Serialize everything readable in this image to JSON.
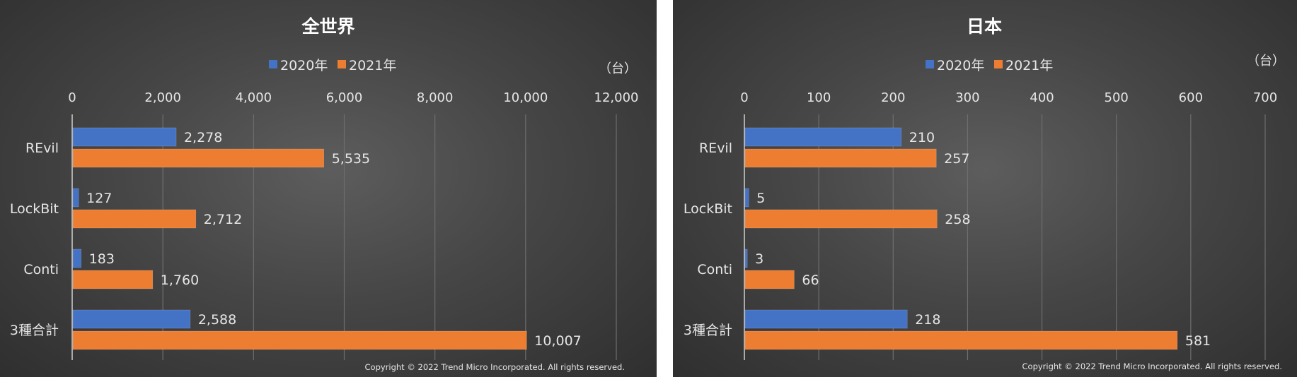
{
  "colors": {
    "series_2020": "#4472c4",
    "series_2021": "#ed7d31",
    "grid": "#6e6e6e",
    "text": "#e6e6e6"
  },
  "chart_data": [
    {
      "type": "bar",
      "orientation": "horizontal",
      "title": "全世界",
      "unit": "（台）",
      "categories": [
        "REvil",
        "LockBit",
        "Conti",
        "3種合計"
      ],
      "series": [
        {
          "name": "2020年",
          "values": [
            2278,
            127,
            183,
            2588
          ]
        },
        {
          "name": "2021年",
          "values": [
            5535,
            2712,
            1760,
            10007
          ]
        }
      ],
      "value_labels": [
        [
          "2,278",
          "127",
          "183",
          "2,588"
        ],
        [
          "5,535",
          "2,712",
          "1,760",
          "10,007"
        ]
      ],
      "xlim": [
        0,
        12000
      ],
      "ticks": [
        0,
        2000,
        4000,
        6000,
        8000,
        10000,
        12000
      ],
      "tick_labels": [
        "0",
        "2,000",
        "4,000",
        "6,000",
        "8,000",
        "10,000",
        "12,000"
      ],
      "axis_position": "top",
      "legend": "top",
      "grid": true,
      "copyright": "Copyright © 2022 Trend Micro Incorporated. All rights reserved."
    },
    {
      "type": "bar",
      "orientation": "horizontal",
      "title": "日本",
      "unit": "（台）",
      "categories": [
        "REvil",
        "LockBit",
        "Conti",
        "3種合計"
      ],
      "series": [
        {
          "name": "2020年",
          "values": [
            210,
            5,
            3,
            218
          ]
        },
        {
          "name": "2021年",
          "values": [
            257,
            258,
            66,
            581
          ]
        }
      ],
      "value_labels": [
        [
          "210",
          "5",
          "3",
          "218"
        ],
        [
          "257",
          "258",
          "66",
          "581"
        ]
      ],
      "xlim": [
        0,
        700
      ],
      "ticks": [
        0,
        100,
        200,
        300,
        400,
        500,
        600,
        700
      ],
      "tick_labels": [
        "0",
        "100",
        "200",
        "300",
        "400",
        "500",
        "600",
        "700"
      ],
      "axis_position": "top",
      "legend": "top",
      "grid": true,
      "copyright": "Copyright © 2022 Trend Micro Incorporated. All rights reserved."
    }
  ]
}
